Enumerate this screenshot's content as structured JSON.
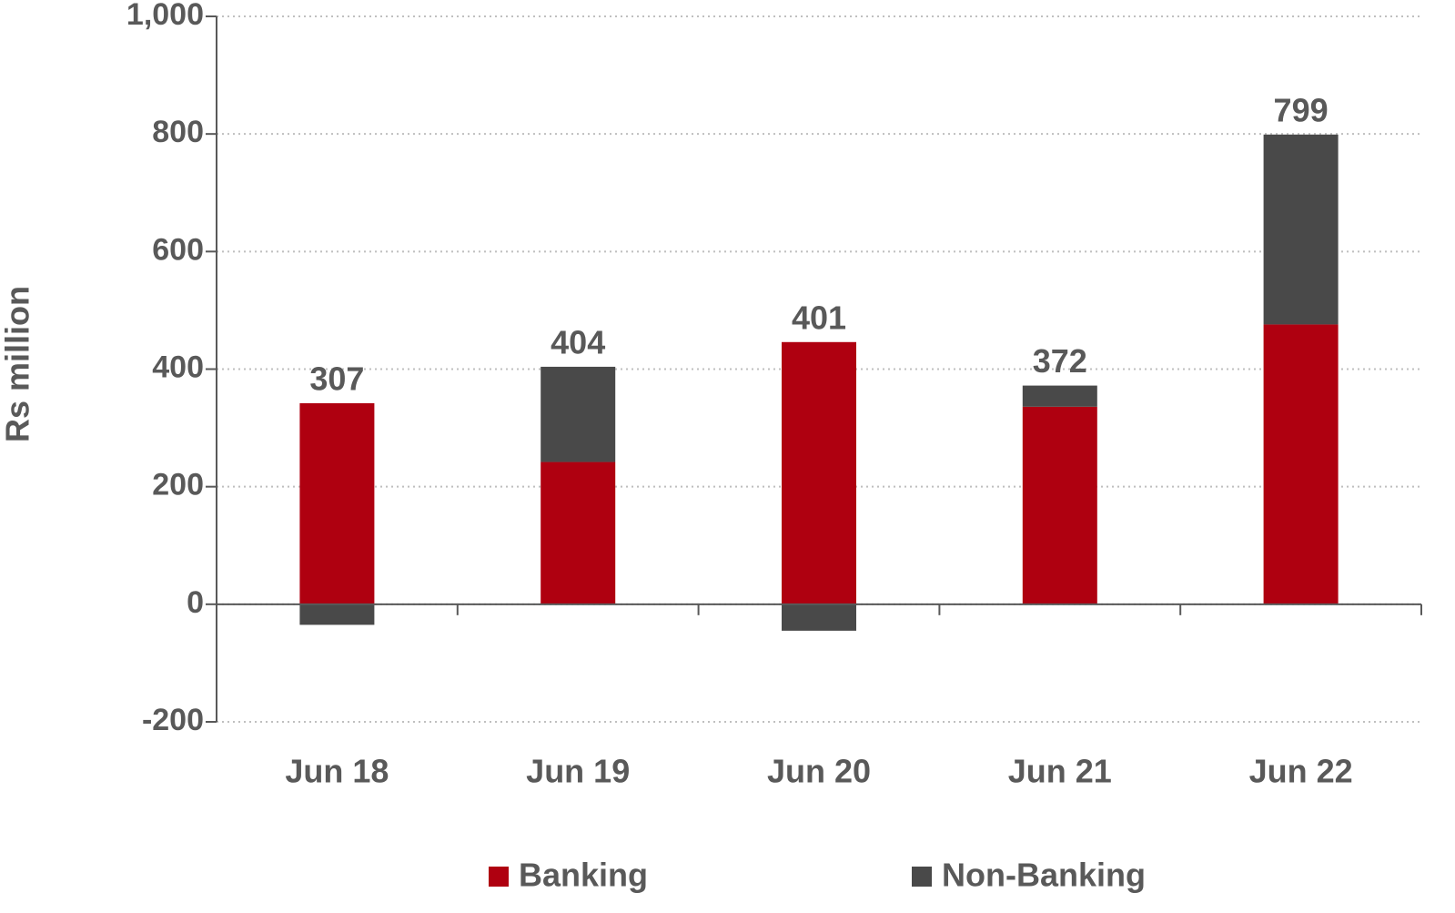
{
  "chart_data": {
    "type": "stacked_bar",
    "y_axis_label": "Rs million",
    "categories": [
      "Jun 18",
      "Jun 19",
      "Jun 20",
      "Jun 21",
      "Jun 22"
    ],
    "series": [
      {
        "name": "Banking",
        "color": "#af0010",
        "values": [
          342,
          242,
          446,
          336,
          476
        ]
      },
      {
        "name": "Non-Banking",
        "color": "#494949",
        "values": [
          -35,
          162,
          -45,
          36,
          323
        ]
      }
    ],
    "totals": [
      307,
      404,
      401,
      372,
      799
    ],
    "ylim": [
      -200,
      1000
    ],
    "yticks": [
      -200,
      0,
      200,
      400,
      600,
      800,
      {
        "value": 1000,
        "label": "1,000"
      }
    ],
    "grid": true,
    "legend": "bottom"
  }
}
